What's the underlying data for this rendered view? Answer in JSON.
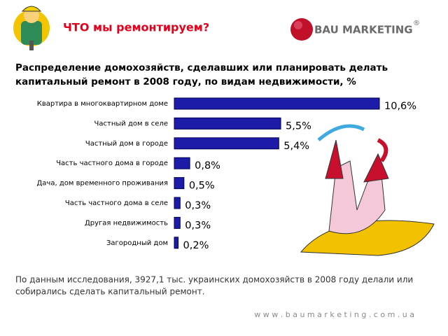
{
  "header": {
    "title": "ЧТО мы ремонтируем?",
    "logo": "BAU MARKETING",
    "logo_mark": "®"
  },
  "chart_data": {
    "type": "hbar",
    "title": [
      "Распределение домохозяйств, сделавших или планировать делать",
      "капитальный ремонт в 2008 году, по видам недвижимости, %"
    ],
    "categories": [
      "Квартира в многоквартирном доме",
      "Частный дом в селе",
      "Частный дом в городе",
      "Часть частного дома в городе",
      "Дача, дом временного проживания",
      "Часть частного дома в селе",
      "Другая недвижимость",
      "Загородный дом"
    ],
    "values": [
      10.6,
      5.5,
      5.4,
      0.8,
      0.5,
      0.3,
      0.3,
      0.2
    ],
    "value_labels": [
      "10,6%",
      "5,5%",
      "5,4%",
      "0,8%",
      "0,5%",
      "0,3%",
      "0,3%",
      "0,2%"
    ],
    "color": "#1c1ca8"
  },
  "footnote": [
    "По данным исследования, 3927,1 тыс. украинских домохозяйств в 2008 году делали или",
    "собирались сделать капитальный ремонт."
  ],
  "website": "w w w . b a u m a r k e t i n g . c o m . u a"
}
